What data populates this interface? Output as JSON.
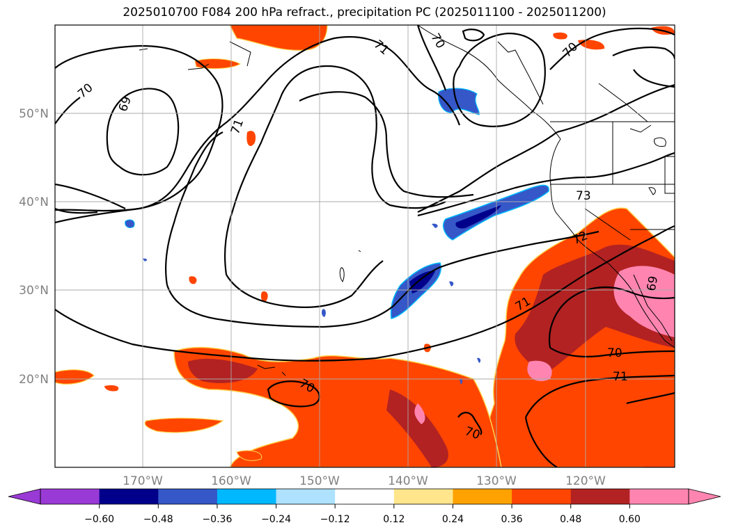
{
  "title": "2025010700 F084 200 hPa refract., precipitation PC (2025011100 - 2025011200)",
  "lat_labels": [
    "50°N",
    "40°N",
    "30°N",
    "20°N"
  ],
  "lon_labels": [
    "170°W",
    "160°W",
    "150°W",
    "140°W",
    "130°W",
    "120°W"
  ],
  "colorbar": {
    "ticks": [
      "−0.60",
      "−0.48",
      "−0.36",
      "−0.24",
      "−0.12",
      "0.12",
      "0.24",
      "0.36",
      "0.48",
      "0.60"
    ],
    "colors": [
      "#9a3ad6",
      "#00008b",
      "#3557c8",
      "#00b8ff",
      "#aee2ff",
      "#ffffff",
      "#ffe68c",
      "#ffa200",
      "#ff4500",
      "#b22222",
      "#ff85b0"
    ]
  },
  "contour_labels": [
    "69",
    "70",
    "71",
    "70",
    "71",
    "70",
    "73",
    "72",
    "71",
    "70",
    "71",
    "70",
    "70",
    "69"
  ],
  "colors": {
    "grid": "#aaaaaa",
    "tick_label": "#808080",
    "contour": "#000000"
  }
}
